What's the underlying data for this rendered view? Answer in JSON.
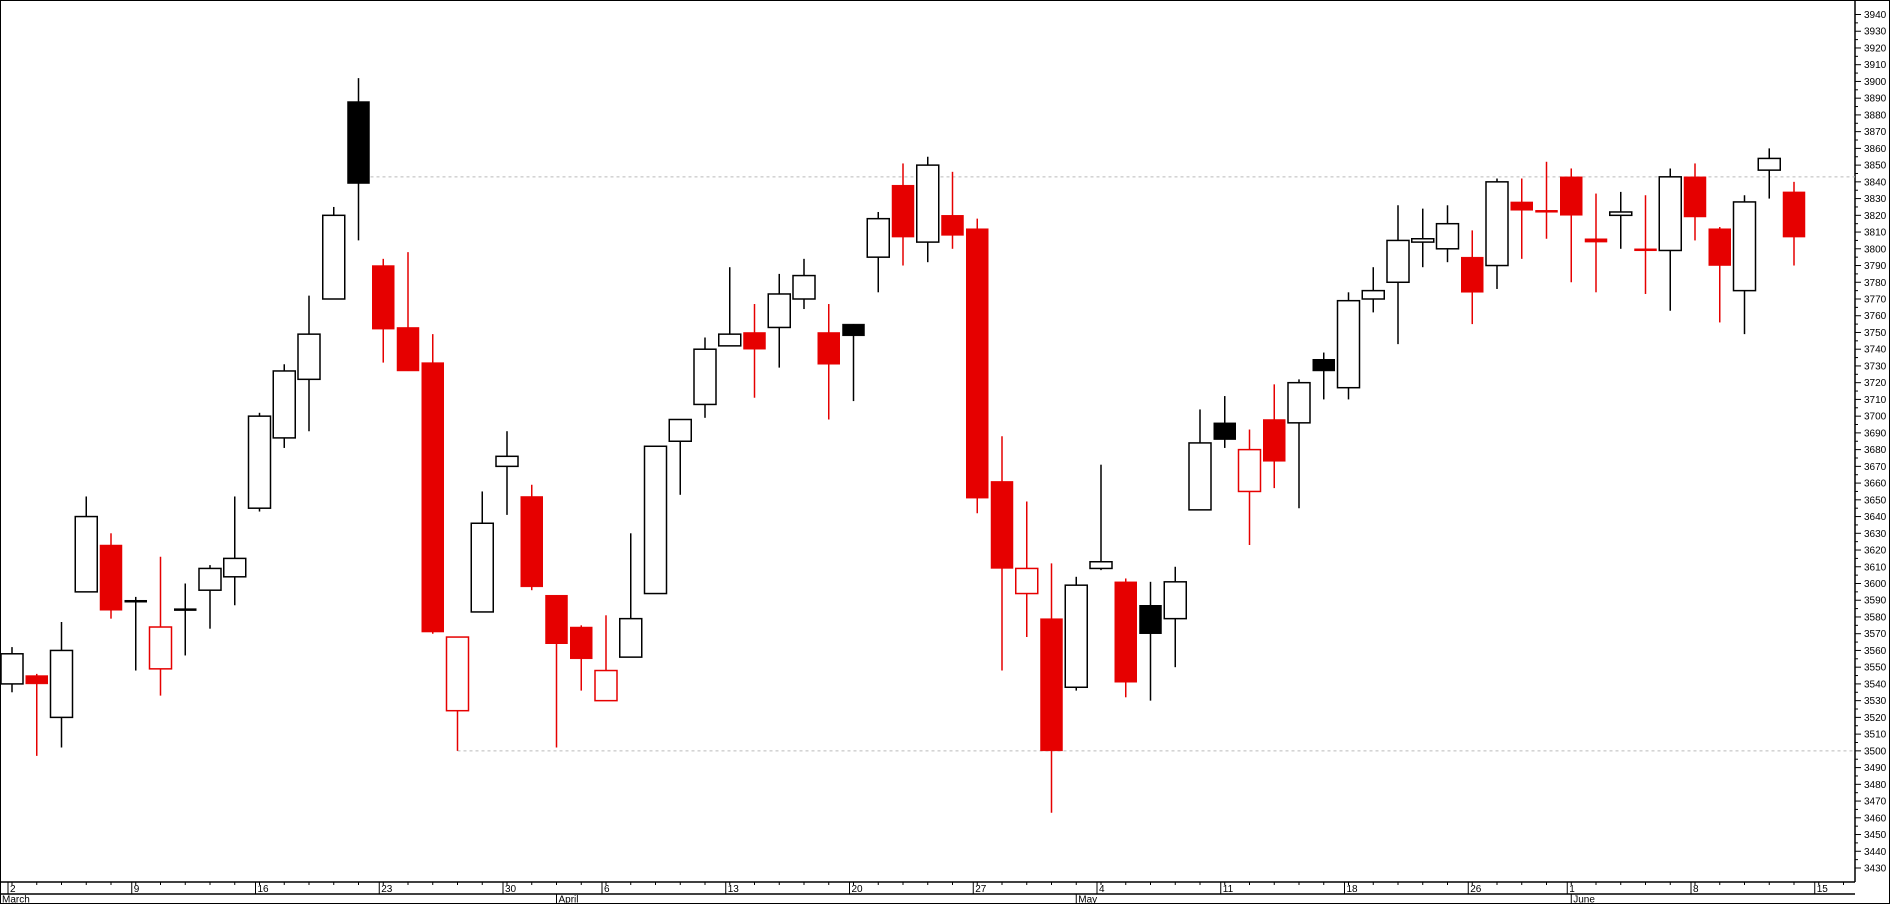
{
  "chart_data": {
    "type": "candlestick",
    "title": "",
    "xlabel": "",
    "ylabel": "",
    "ylim": [
      3430,
      3940
    ],
    "ytick_step": 10,
    "grid": false,
    "colors": {
      "up_prev": "#000000",
      "down_prev": "#e60000",
      "reference_line": "#bbbbbb"
    },
    "reference_lines": [
      {
        "value": 3843,
        "from_date": "Mar 20"
      },
      {
        "value": 3500,
        "from_date": "Mar 26"
      }
    ],
    "date_ticks": [
      {
        "label": "2",
        "index": 0
      },
      {
        "label": "9",
        "index": 5
      },
      {
        "label": "16",
        "index": 10
      },
      {
        "label": "23",
        "index": 15
      },
      {
        "label": "30",
        "index": 20
      },
      {
        "label": "6",
        "index": 24
      },
      {
        "label": "13",
        "index": 29
      },
      {
        "label": "20",
        "index": 34
      },
      {
        "label": "27",
        "index": 39
      },
      {
        "label": "4",
        "index": 44
      },
      {
        "label": "11",
        "index": 49
      },
      {
        "label": "18",
        "index": 54
      },
      {
        "label": "26",
        "index": 59
      },
      {
        "label": "1",
        "index": 63
      },
      {
        "label": "8",
        "index": 68
      },
      {
        "label": "15",
        "index": 73
      }
    ],
    "months": [
      {
        "label": "March",
        "index": 0
      },
      {
        "label": "April",
        "index": 22
      },
      {
        "label": "May",
        "index": 43
      },
      {
        "label": "June",
        "index": 63
      }
    ],
    "candles": [
      {
        "date": "Mar 2",
        "o": 3540,
        "h": 3562,
        "l": 3535,
        "c": 3558,
        "style": "hollow-black"
      },
      {
        "date": "Mar 3",
        "o": 3545,
        "h": 3546,
        "l": 3497,
        "c": 3540,
        "style": "solid-red"
      },
      {
        "date": "Mar 4",
        "o": 3520,
        "h": 3577,
        "l": 3502,
        "c": 3560,
        "style": "hollow-black"
      },
      {
        "date": "Mar 5",
        "o": 3595,
        "h": 3652,
        "l": 3595,
        "c": 3640,
        "style": "hollow-black"
      },
      {
        "date": "Mar 6",
        "o": 3623,
        "h": 3630,
        "l": 3579,
        "c": 3584,
        "style": "solid-red"
      },
      {
        "date": "Mar 9",
        "o": 3590,
        "h": 3592,
        "l": 3548,
        "c": 3590,
        "style": "solid-black"
      },
      {
        "date": "Mar 10",
        "o": 3549,
        "h": 3616,
        "l": 3533,
        "c": 3574,
        "style": "hollow-red"
      },
      {
        "date": "Mar 11",
        "o": 3585,
        "h": 3600,
        "l": 3557,
        "c": 3585,
        "style": "solid-black"
      },
      {
        "date": "Mar 12",
        "o": 3596,
        "h": 3611,
        "l": 3573,
        "c": 3609,
        "style": "hollow-black"
      },
      {
        "date": "Mar 13",
        "o": 3604,
        "h": 3652,
        "l": 3587,
        "c": 3615,
        "style": "hollow-black"
      },
      {
        "date": "Mar 16",
        "o": 3645,
        "h": 3702,
        "l": 3643,
        "c": 3700,
        "style": "hollow-black"
      },
      {
        "date": "Mar 17",
        "o": 3687,
        "h": 3731,
        "l": 3681,
        "c": 3727,
        "style": "hollow-black"
      },
      {
        "date": "Mar 18",
        "o": 3722,
        "h": 3772,
        "l": 3691,
        "c": 3749,
        "style": "hollow-black"
      },
      {
        "date": "Mar 19",
        "o": 3770,
        "h": 3825,
        "l": 3770,
        "c": 3820,
        "style": "hollow-black"
      },
      {
        "date": "Mar 20",
        "o": 3888,
        "h": 3902,
        "l": 3805,
        "c": 3839,
        "style": "solid-black"
      },
      {
        "date": "Mar 23",
        "o": 3790,
        "h": 3794,
        "l": 3732,
        "c": 3752,
        "style": "solid-red"
      },
      {
        "date": "Mar 24",
        "o": 3753,
        "h": 3798,
        "l": 3727,
        "c": 3727,
        "style": "solid-red"
      },
      {
        "date": "Mar 25",
        "o": 3732,
        "h": 3749,
        "l": 3570,
        "c": 3571,
        "style": "solid-red"
      },
      {
        "date": "Mar 26",
        "o": 3524,
        "h": 3568,
        "l": 3500,
        "c": 3568,
        "style": "hollow-red"
      },
      {
        "date": "Mar 27",
        "o": 3583,
        "h": 3655,
        "l": 3583,
        "c": 3636,
        "style": "hollow-black"
      },
      {
        "date": "Mar 30",
        "o": 3670,
        "h": 3691,
        "l": 3641,
        "c": 3676,
        "style": "hollow-black"
      },
      {
        "date": "Mar 31",
        "o": 3652,
        "h": 3659,
        "l": 3596,
        "c": 3598,
        "style": "solid-red"
      },
      {
        "date": "Apr 1",
        "o": 3593,
        "h": 3593,
        "l": 3502,
        "c": 3564,
        "style": "solid-red"
      },
      {
        "date": "Apr 2",
        "o": 3574,
        "h": 3575,
        "l": 3536,
        "c": 3555,
        "style": "solid-red"
      },
      {
        "date": "Apr 6",
        "o": 3530,
        "h": 3581,
        "l": 3530,
        "c": 3548,
        "style": "hollow-red"
      },
      {
        "date": "Apr 7",
        "o": 3556,
        "h": 3630,
        "l": 3556,
        "c": 3579,
        "style": "hollow-black"
      },
      {
        "date": "Apr 8",
        "o": 3594,
        "h": 3682,
        "l": 3594,
        "c": 3682,
        "style": "hollow-black"
      },
      {
        "date": "Apr 9",
        "o": 3685,
        "h": 3698,
        "l": 3653,
        "c": 3698,
        "style": "hollow-black"
      },
      {
        "date": "Apr 10",
        "o": 3707,
        "h": 3747,
        "l": 3699,
        "c": 3740,
        "style": "hollow-black"
      },
      {
        "date": "Apr 13",
        "o": 3742,
        "h": 3789,
        "l": 3742,
        "c": 3749,
        "style": "hollow-black"
      },
      {
        "date": "Apr 14",
        "o": 3750,
        "h": 3767,
        "l": 3711,
        "c": 3740,
        "style": "solid-red"
      },
      {
        "date": "Apr 15",
        "o": 3753,
        "h": 3785,
        "l": 3729,
        "c": 3773,
        "style": "hollow-black"
      },
      {
        "date": "Apr 16",
        "o": 3770,
        "h": 3794,
        "l": 3764,
        "c": 3784,
        "style": "hollow-black"
      },
      {
        "date": "Apr 17",
        "o": 3750,
        "h": 3767,
        "l": 3698,
        "c": 3731,
        "style": "solid-red"
      },
      {
        "date": "Apr 20",
        "o": 3755,
        "h": 3755,
        "l": 3709,
        "c": 3748,
        "style": "solid-black"
      },
      {
        "date": "Apr 21",
        "o": 3795,
        "h": 3822,
        "l": 3774,
        "c": 3818,
        "style": "hollow-black"
      },
      {
        "date": "Apr 22",
        "o": 3838,
        "h": 3851,
        "l": 3790,
        "c": 3807,
        "style": "solid-red"
      },
      {
        "date": "Apr 23",
        "o": 3804,
        "h": 3855,
        "l": 3792,
        "c": 3850,
        "style": "hollow-black"
      },
      {
        "date": "Apr 24",
        "o": 3820,
        "h": 3846,
        "l": 3800,
        "c": 3808,
        "style": "solid-red"
      },
      {
        "date": "Apr 27",
        "o": 3812,
        "h": 3818,
        "l": 3642,
        "c": 3651,
        "style": "solid-red"
      },
      {
        "date": "Apr 28",
        "o": 3661,
        "h": 3688,
        "l": 3548,
        "c": 3609,
        "style": "solid-red"
      },
      {
        "date": "Apr 29",
        "o": 3594,
        "h": 3649,
        "l": 3568,
        "c": 3609,
        "style": "hollow-red"
      },
      {
        "date": "Apr 30",
        "o": 3579,
        "h": 3612,
        "l": 3463,
        "c": 3500,
        "style": "solid-red"
      },
      {
        "date": "May 1",
        "o": 3538,
        "h": 3604,
        "l": 3536,
        "c": 3599,
        "style": "hollow-black"
      },
      {
        "date": "May 4",
        "o": 3609,
        "h": 3671,
        "l": 3608,
        "c": 3613,
        "style": "hollow-black"
      },
      {
        "date": "May 5",
        "o": 3601,
        "h": 3603,
        "l": 3532,
        "c": 3541,
        "style": "solid-red"
      },
      {
        "date": "May 6",
        "o": 3587,
        "h": 3601,
        "l": 3530,
        "c": 3570,
        "style": "solid-black"
      },
      {
        "date": "May 7",
        "o": 3579,
        "h": 3610,
        "l": 3550,
        "c": 3601,
        "style": "hollow-black"
      },
      {
        "date": "May 8",
        "o": 3644,
        "h": 3704,
        "l": 3644,
        "c": 3684,
        "style": "hollow-black"
      },
      {
        "date": "May 11",
        "o": 3696,
        "h": 3712,
        "l": 3681,
        "c": 3686,
        "style": "solid-black"
      },
      {
        "date": "May 12",
        "o": 3655,
        "h": 3692,
        "l": 3623,
        "c": 3680,
        "style": "hollow-red"
      },
      {
        "date": "May 13",
        "o": 3698,
        "h": 3719,
        "l": 3657,
        "c": 3673,
        "style": "solid-red"
      },
      {
        "date": "May 14",
        "o": 3696,
        "h": 3722,
        "l": 3645,
        "c": 3720,
        "style": "hollow-black"
      },
      {
        "date": "May 15",
        "o": 3734,
        "h": 3738,
        "l": 3710,
        "c": 3727,
        "style": "solid-black"
      },
      {
        "date": "May 18",
        "o": 3717,
        "h": 3774,
        "l": 3710,
        "c": 3769,
        "style": "hollow-black"
      },
      {
        "date": "May 19",
        "o": 3770,
        "h": 3789,
        "l": 3762,
        "c": 3775,
        "style": "hollow-black"
      },
      {
        "date": "May 20",
        "o": 3780,
        "h": 3826,
        "l": 3743,
        "c": 3805,
        "style": "hollow-black"
      },
      {
        "date": "May 21",
        "o": 3804,
        "h": 3824,
        "l": 3789,
        "c": 3806,
        "style": "hollow-black"
      },
      {
        "date": "May 22",
        "o": 3800,
        "h": 3826,
        "l": 3792,
        "c": 3815,
        "style": "hollow-black"
      },
      {
        "date": "May 26",
        "o": 3795,
        "h": 3811,
        "l": 3755,
        "c": 3774,
        "style": "solid-red"
      },
      {
        "date": "May 27",
        "o": 3790,
        "h": 3842,
        "l": 3776,
        "c": 3840,
        "style": "hollow-black"
      },
      {
        "date": "May 28",
        "o": 3828,
        "h": 3842,
        "l": 3794,
        "c": 3823,
        "style": "solid-red"
      },
      {
        "date": "May 29",
        "o": 3823,
        "h": 3852,
        "l": 3806,
        "c": 3822,
        "style": "solid-red"
      },
      {
        "date": "Jun 1",
        "o": 3843,
        "h": 3848,
        "l": 3780,
        "c": 3820,
        "style": "solid-red"
      },
      {
        "date": "Jun 2",
        "o": 3806,
        "h": 3833,
        "l": 3774,
        "c": 3804,
        "style": "solid-red"
      },
      {
        "date": "Jun 3",
        "o": 3820,
        "h": 3834,
        "l": 3800,
        "c": 3822,
        "style": "hollow-black"
      },
      {
        "date": "Jun 4",
        "o": 3800,
        "h": 3832,
        "l": 3773,
        "c": 3799,
        "style": "solid-red"
      },
      {
        "date": "Jun 5",
        "o": 3799,
        "h": 3848,
        "l": 3763,
        "c": 3843,
        "style": "hollow-black"
      },
      {
        "date": "Jun 8",
        "o": 3843,
        "h": 3851,
        "l": 3805,
        "c": 3819,
        "style": "solid-red"
      },
      {
        "date": "Jun 9",
        "o": 3812,
        "h": 3813,
        "l": 3756,
        "c": 3790,
        "style": "solid-red"
      },
      {
        "date": "Jun 10",
        "o": 3775,
        "h": 3832,
        "l": 3749,
        "c": 3828,
        "style": "hollow-black"
      },
      {
        "date": "Jun 11",
        "o": 3847,
        "h": 3860,
        "l": 3830,
        "c": 3854,
        "style": "hollow-black"
      },
      {
        "date": "Jun 12",
        "o": 3834,
        "h": 3840,
        "l": 3790,
        "c": 3807,
        "style": "solid-red"
      }
    ]
  }
}
